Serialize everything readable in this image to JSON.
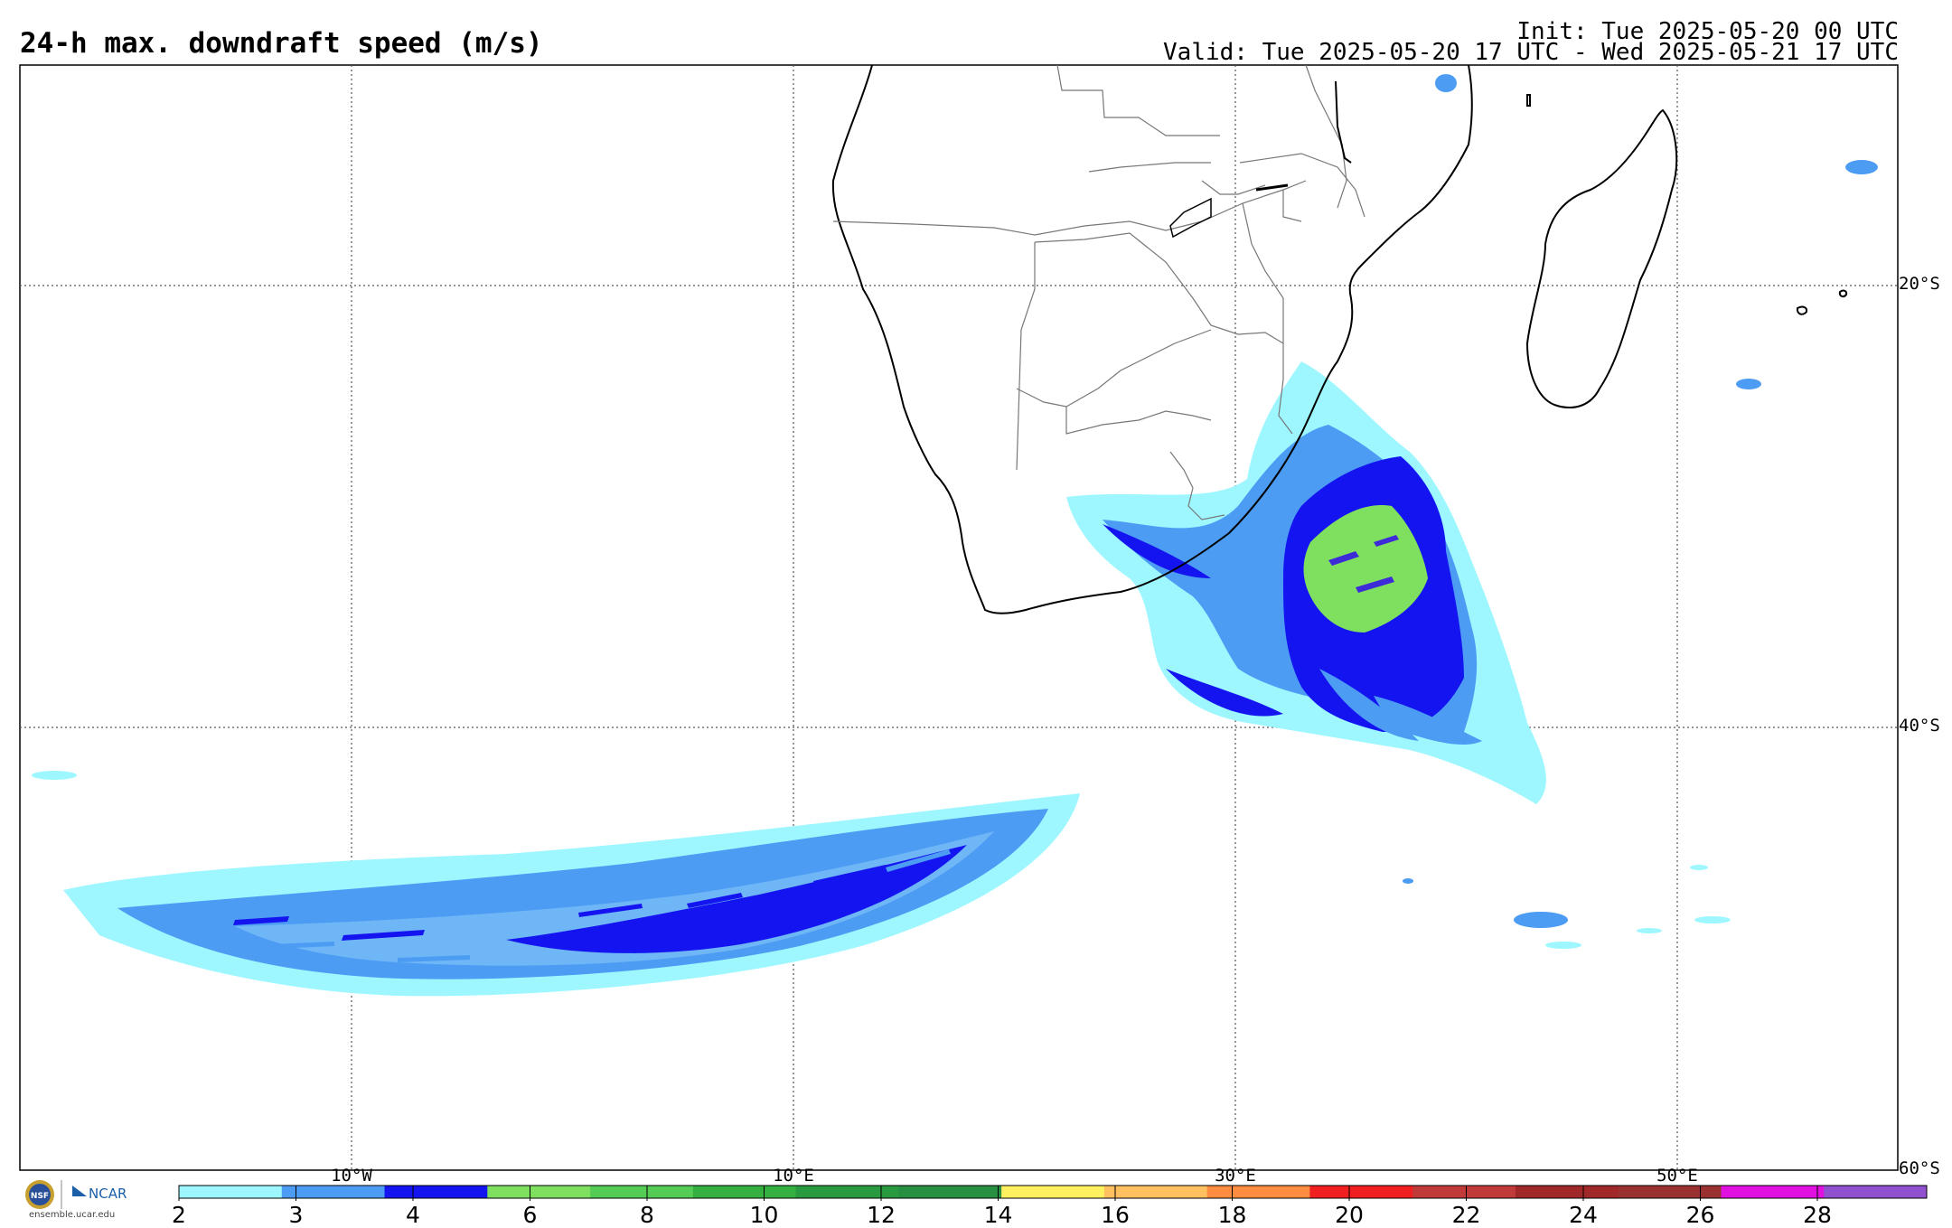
{
  "title": "24-h max. downdraft speed (m/s)",
  "init": "Init: Tue 2025-05-20 00 UTC",
  "valid": "Valid: Tue 2025-05-20 17 UTC - Wed 2025-05-21 17 UTC",
  "lat_labels": [
    "20°S",
    "40°S",
    "60°S"
  ],
  "lon_labels": [
    "10°W",
    "10°E",
    "30°E",
    "50°E"
  ],
  "colorbar": {
    "ticks": [
      "2",
      "3",
      "4",
      "6",
      "8",
      "10",
      "12",
      "14",
      "16",
      "18",
      "20",
      "22",
      "24",
      "26",
      "28"
    ],
    "colors": [
      "#9ef7ff",
      "#4c9cf4",
      "#1414f0",
      "#7fe060",
      "#55cc55",
      "#33b040",
      "#2a9a40",
      "#269040",
      "#fff060",
      "#ffc060",
      "#ff8c40",
      "#f02020",
      "#c03a3a",
      "#a02828",
      "#9a3030",
      "#e010e0",
      "#9050d0"
    ]
  },
  "logo": {
    "nsf": "NSF",
    "ncar": "NCAR",
    "url": "ensemble.ucar.edu"
  }
}
